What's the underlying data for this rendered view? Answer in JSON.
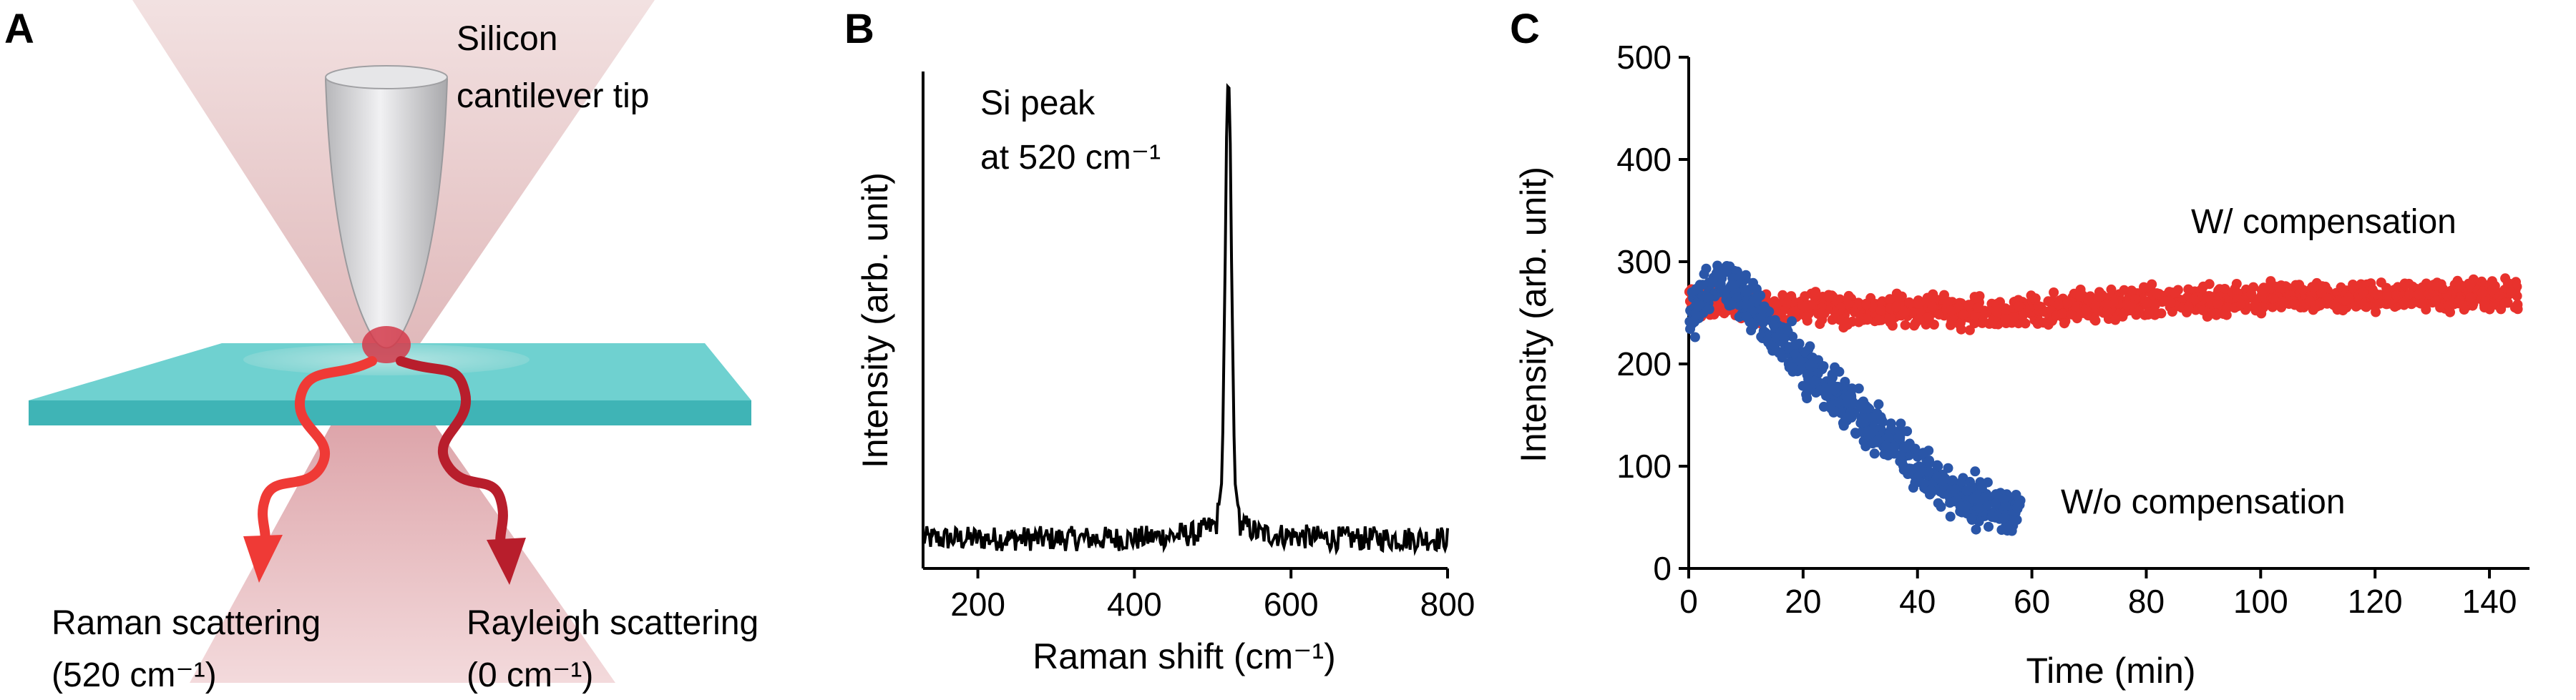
{
  "panels": {
    "a": {
      "letter": "A",
      "tip_label_line1": "Silicon",
      "tip_label_line2": "cantilever tip",
      "raman_label_line1": "Raman scattering",
      "raman_label_line2": "(520 cm⁻¹)",
      "rayleigh_label_line1": "Rayleigh scattering",
      "rayleigh_label_line2": "(0 cm⁻¹)",
      "colors": {
        "beam": "#d8a3a6",
        "slab": "#5ec8c8",
        "raman_arrow": "#ef3a36",
        "rayleigh_arrow": "#b81e2c",
        "tip": "#cfcfd2"
      }
    },
    "b": {
      "letter": "B",
      "annotation_line1": "Si peak",
      "annotation_line2": "at 520 cm⁻¹"
    },
    "c": {
      "letter": "C"
    }
  },
  "chart_data": [
    {
      "id": "spectrum",
      "type": "line",
      "xlabel": "Raman shift (cm⁻¹)",
      "ylabel": "Intensity (arb. unit)",
      "xlim": [
        130,
        800
      ],
      "ylim": [
        0,
        100
      ],
      "x_ticks": [
        200,
        400,
        600,
        800
      ],
      "y_ticks_labeled": false,
      "series": [
        {
          "color": "#000000",
          "x": [
            130,
            200,
            300,
            400,
            480,
            505,
            512,
            516,
            518,
            520,
            522,
            524,
            528,
            535,
            560,
            650,
            750,
            800
          ],
          "y": [
            6,
            6,
            6,
            6,
            7,
            9,
            18,
            62,
            92,
            100,
            92,
            62,
            18,
            9,
            7,
            6,
            6,
            6
          ]
        }
      ]
    },
    {
      "id": "timecourse",
      "type": "scatter",
      "xlabel": "Time (min)",
      "ylabel": "Intensity (arb. unit)",
      "xlim": [
        0,
        147
      ],
      "ylim": [
        0,
        500
      ],
      "x_ticks": [
        0,
        20,
        40,
        60,
        80,
        100,
        120,
        140
      ],
      "y_ticks": [
        0,
        100,
        200,
        300,
        400,
        500
      ],
      "series": [
        {
          "name": "W/ compensation",
          "color": "#e8322d",
          "x": [
            0,
            10,
            20,
            30,
            40,
            50,
            60,
            70,
            80,
            90,
            100,
            110,
            120,
            130,
            145
          ],
          "y": [
            258,
            257,
            255,
            253,
            252,
            250,
            252,
            257,
            260,
            262,
            264,
            265,
            266,
            267,
            268
          ],
          "spread": 12
        },
        {
          "name": "W/o compensation",
          "color": "#2a56a8",
          "x": [
            0,
            3,
            5,
            8,
            12,
            20,
            30,
            40,
            45,
            50,
            55,
            58
          ],
          "y": [
            248,
            265,
            280,
            272,
            250,
            200,
            150,
            100,
            80,
            65,
            58,
            55
          ],
          "spread": 20
        }
      ]
    }
  ]
}
